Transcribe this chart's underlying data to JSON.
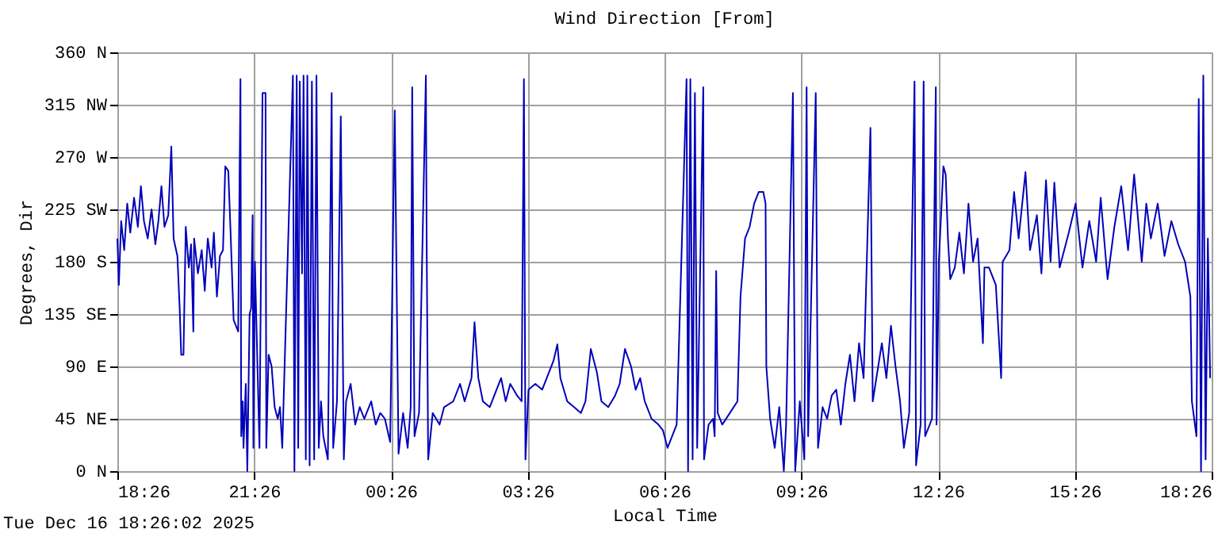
{
  "chart_data": {
    "type": "line",
    "title": "Wind Direction [From]",
    "xlabel": "Local Time",
    "ylabel": "Degrees, Dir",
    "annotations": [
      "Tue Dec 16 18:26:02 2025"
    ],
    "x": [
      "2025-12-15T18:26",
      "2025-12-15T18:28",
      "2025-12-15T18:31",
      "2025-12-15T18:35",
      "2025-12-15T18:39",
      "2025-12-15T18:43",
      "2025-12-15T18:48",
      "2025-12-15T18:53",
      "2025-12-15T18:57",
      "2025-12-15T19:01",
      "2025-12-15T19:06",
      "2025-12-15T19:11",
      "2025-12-15T19:16",
      "2025-12-15T19:20",
      "2025-12-15T19:24",
      "2025-12-15T19:28",
      "2025-12-15T19:33",
      "2025-12-15T19:37",
      "2025-12-15T19:40",
      "2025-12-15T19:45",
      "2025-12-15T19:48",
      "2025-12-15T19:50",
      "2025-12-15T19:53",
      "2025-12-15T19:56",
      "2025-12-15T20:00",
      "2025-12-15T20:03",
      "2025-12-15T20:06",
      "2025-12-15T20:07",
      "2025-12-15T20:12",
      "2025-12-15T20:17",
      "2025-12-15T20:21",
      "2025-12-15T20:25",
      "2025-12-15T20:30",
      "2025-12-15T20:33",
      "2025-12-15T20:37",
      "2025-12-15T20:41",
      "2025-12-15T20:45",
      "2025-12-15T20:48",
      "2025-12-15T20:52",
      "2025-12-15T20:55",
      "2025-12-15T20:59",
      "2025-12-15T21:05",
      "2025-12-15T21:08",
      "2025-12-15T21:09",
      "2025-12-15T21:11",
      "2025-12-15T21:12",
      "2025-12-15T21:15",
      "2025-12-15T21:17",
      "2025-12-15T21:20",
      "2025-12-15T21:22",
      "2025-12-15T21:24",
      "2025-12-15T21:25",
      "2025-12-15T21:27",
      "2025-12-15T21:33",
      "2025-12-15T21:37",
      "2025-12-15T21:41",
      "2025-12-15T21:42",
      "2025-12-15T21:45",
      "2025-12-15T21:49",
      "2025-12-15T21:53",
      "2025-12-15T21:57",
      "2025-12-15T22:00",
      "2025-12-15T22:03",
      "2025-12-15T22:17",
      "2025-12-15T22:19",
      "2025-12-15T22:22",
      "2025-12-15T22:24",
      "2025-12-15T22:26",
      "2025-12-15T22:29",
      "2025-12-15T22:31",
      "2025-12-15T22:34",
      "2025-12-15T22:36",
      "2025-12-15T22:39",
      "2025-12-15T22:42",
      "2025-12-15T22:45",
      "2025-12-15T22:48",
      "2025-12-15T22:51",
      "2025-12-15T22:54",
      "2025-12-15T22:57",
      "2025-12-15T23:03",
      "2025-12-15T23:08",
      "2025-12-15T23:10",
      "2025-12-15T23:15",
      "2025-12-15T23:20",
      "2025-12-15T23:24",
      "2025-12-15T23:27",
      "2025-12-15T23:33",
      "2025-12-15T23:39",
      "2025-12-15T23:45",
      "2025-12-15T23:51",
      "2025-12-16T00:00",
      "2025-12-16T00:06",
      "2025-12-16T00:12",
      "2025-12-16T00:18",
      "2025-12-16T00:25",
      "2025-12-16T00:31",
      "2025-12-16T00:33",
      "2025-12-16T00:36",
      "2025-12-16T00:42",
      "2025-12-16T00:48",
      "2025-12-16T00:52",
      "2025-12-16T00:54",
      "2025-12-16T00:57",
      "2025-12-16T01:03",
      "2025-12-16T01:12",
      "2025-12-16T01:13",
      "2025-12-16T01:15",
      "2025-12-16T01:21",
      "2025-12-16T01:30",
      "2025-12-16T01:36",
      "2025-12-16T01:48",
      "2025-12-16T01:57",
      "2025-12-16T02:03",
      "2025-12-16T02:12",
      "2025-12-16T02:16",
      "2025-12-16T02:21",
      "2025-12-16T02:27",
      "2025-12-16T02:36",
      "2025-12-16T02:42",
      "2025-12-16T02:51",
      "2025-12-16T02:57",
      "2025-12-16T03:03",
      "2025-12-16T03:12",
      "2025-12-16T03:18",
      "2025-12-16T03:21",
      "2025-12-16T03:23",
      "2025-12-16T03:27",
      "2025-12-16T03:36",
      "2025-12-16T03:45",
      "2025-12-16T03:54",
      "2025-12-16T04:00",
      "2025-12-16T04:05",
      "2025-12-16T04:09",
      "2025-12-16T04:18",
      "2025-12-16T04:27",
      "2025-12-16T04:36",
      "2025-12-16T04:42",
      "2025-12-16T04:49",
      "2025-12-16T04:57",
      "2025-12-16T05:03",
      "2025-12-16T05:12",
      "2025-12-16T05:21",
      "2025-12-16T05:27",
      "2025-12-16T05:34",
      "2025-12-16T05:42",
      "2025-12-16T05:48",
      "2025-12-16T05:54",
      "2025-12-16T06:00",
      "2025-12-16T06:09",
      "2025-12-16T06:18",
      "2025-12-16T06:24",
      "2025-12-16T06:30",
      "2025-12-16T06:42",
      "2025-12-16T06:55",
      "2025-12-16T06:57",
      "2025-12-16T07:00",
      "2025-12-16T07:03",
      "2025-12-16T07:06",
      "2025-12-16T07:09",
      "2025-12-16T07:17",
      "2025-12-16T07:18",
      "2025-12-16T07:24",
      "2025-12-16T07:30",
      "2025-12-16T07:32",
      "2025-12-16T07:34",
      "2025-12-16T07:36",
      "2025-12-16T07:42",
      "2025-12-16T08:02",
      "2025-12-16T08:06",
      "2025-12-16T08:12",
      "2025-12-16T08:18",
      "2025-12-16T08:24",
      "2025-12-16T08:30",
      "2025-12-16T08:36",
      "2025-12-16T08:39",
      "2025-12-16T08:40",
      "2025-12-16T08:45",
      "2025-12-16T08:51",
      "2025-12-16T08:57",
      "2025-12-16T09:03",
      "2025-12-16T09:06",
      "2025-12-16T09:15",
      "2025-12-16T09:18",
      "2025-12-16T09:24",
      "2025-12-16T09:30",
      "2025-12-16T09:33",
      "2025-12-16T09:35",
      "2025-12-16T09:45",
      "2025-12-16T09:48",
      "2025-12-16T09:54",
      "2025-12-16T10:00",
      "2025-12-16T10:06",
      "2025-12-16T10:12",
      "2025-12-16T10:18",
      "2025-12-16T10:24",
      "2025-12-16T10:30",
      "2025-12-16T10:36",
      "2025-12-16T10:42",
      "2025-12-16T10:48",
      "2025-12-16T10:57",
      "2025-12-16T11:00",
      "2025-12-16T11:06",
      "2025-12-16T11:12",
      "2025-12-16T11:18",
      "2025-12-16T11:24",
      "2025-12-16T11:30",
      "2025-12-16T11:36",
      "2025-12-16T11:41",
      "2025-12-16T11:48",
      "2025-12-16T11:55",
      "2025-12-16T11:57",
      "2025-12-16T12:03",
      "2025-12-16T12:07",
      "2025-12-16T12:09",
      "2025-12-16T12:18",
      "2025-12-16T12:23",
      "2025-12-16T12:24",
      "2025-12-16T12:27",
      "2025-12-16T12:33",
      "2025-12-16T12:36",
      "2025-12-16T12:39",
      "2025-12-16T12:42",
      "2025-12-16T12:48",
      "2025-12-16T12:54",
      "2025-12-16T13:00",
      "2025-12-16T13:06",
      "2025-12-16T13:12",
      "2025-12-16T13:18",
      "2025-12-16T13:25",
      "2025-12-16T13:27",
      "2025-12-16T13:33",
      "2025-12-16T13:42",
      "2025-12-16T13:49",
      "2025-12-16T13:51",
      "2025-12-16T14:00",
      "2025-12-16T14:06",
      "2025-12-16T14:12",
      "2025-12-16T14:21",
      "2025-12-16T14:27",
      "2025-12-16T14:36",
      "2025-12-16T14:42",
      "2025-12-16T14:48",
      "2025-12-16T14:54",
      "2025-12-16T14:59",
      "2025-12-16T15:06",
      "2025-12-16T15:18",
      "2025-12-16T15:27",
      "2025-12-16T15:36",
      "2025-12-16T15:45",
      "2025-12-16T15:54",
      "2025-12-16T16:00",
      "2025-12-16T16:09",
      "2025-12-16T16:18",
      "2025-12-16T16:27",
      "2025-12-16T16:36",
      "2025-12-16T16:44",
      "2025-12-16T16:54",
      "2025-12-16T17:00",
      "2025-12-16T17:06",
      "2025-12-16T17:15",
      "2025-12-16T17:24",
      "2025-12-16T17:33",
      "2025-12-16T17:42",
      "2025-12-16T17:51",
      "2025-12-16T17:58",
      "2025-12-16T18:00",
      "2025-12-16T18:03",
      "2025-12-16T18:06",
      "2025-12-16T18:09",
      "2025-12-16T18:12",
      "2025-12-16T18:15",
      "2025-12-16T18:18",
      "2025-12-16T18:21",
      "2025-12-16T18:24"
    ],
    "series": [
      {
        "color": "#0000bb",
        "values": [
          200,
          160,
          215,
          190,
          230,
          205,
          235,
          210,
          245,
          215,
          200,
          225,
          195,
          215,
          245,
          210,
          220,
          279,
          200,
          185,
          140,
          100,
          100,
          210,
          175,
          195,
          120,
          200,
          170,
          190,
          155,
          200,
          175,
          205,
          150,
          185,
          190,
          262,
          258,
          205,
          130,
          120,
          337,
          30,
          60,
          20,
          75,
          0,
          135,
          140,
          220,
          20,
          180,
          20,
          325,
          325,
          20,
          100,
          90,
          55,
          45,
          55,
          20,
          340,
          0,
          340,
          20,
          335,
          170,
          340,
          10,
          340,
          5,
          335,
          10,
          340,
          20,
          60,
          30,
          10,
          325,
          20,
          60,
          305,
          10,
          60,
          75,
          40,
          55,
          45,
          60,
          40,
          50,
          45,
          25,
          310,
          190,
          15,
          50,
          20,
          55,
          330,
          30,
          50,
          340,
          200,
          10,
          50,
          40,
          55,
          60,
          75,
          60,
          80,
          128,
          80,
          60,
          55,
          65,
          80,
          60,
          75,
          65,
          60,
          337,
          10,
          70,
          75,
          70,
          85,
          95,
          109,
          80,
          60,
          55,
          50,
          60,
          105,
          85,
          60,
          55,
          65,
          75,
          105,
          90,
          70,
          80,
          60,
          45,
          40,
          35,
          20,
          40,
          337,
          0,
          337,
          10,
          325,
          20,
          330,
          10,
          40,
          45,
          30,
          172,
          50,
          40,
          60,
          150,
          200,
          210,
          230,
          240,
          240,
          230,
          90,
          45,
          20,
          55,
          0,
          40,
          325,
          0,
          60,
          10,
          330,
          30,
          325,
          20,
          55,
          45,
          65,
          70,
          40,
          75,
          100,
          60,
          110,
          80,
          295,
          60,
          85,
          110,
          80,
          125,
          90,
          60,
          20,
          50,
          335,
          5,
          40,
          335,
          30,
          45,
          330,
          40,
          180,
          262,
          255,
          200,
          165,
          175,
          205,
          170,
          230,
          180,
          200,
          110,
          175,
          175,
          160,
          80,
          180,
          190,
          240,
          200,
          257,
          190,
          220,
          170,
          250,
          180,
          248,
          175,
          205,
          230,
          175,
          215,
          180,
          235,
          165,
          210,
          245,
          190,
          255,
          180,
          230,
          200,
          230,
          185,
          215,
          195,
          180,
          150,
          60,
          45,
          30,
          320,
          0,
          340,
          10,
          200,
          80
        ]
      }
    ],
    "xlim": [
      "2025-12-15T18:26",
      "2025-12-16T18:26"
    ],
    "xticks": [
      {
        "value": "2025-12-15T18:26",
        "label": "18:26"
      },
      {
        "value": "2025-12-15T21:26",
        "label": "21:26"
      },
      {
        "value": "2025-12-16T00:26",
        "label": "00:26"
      },
      {
        "value": "2025-12-16T03:26",
        "label": "03:26"
      },
      {
        "value": "2025-12-16T06:26",
        "label": "06:26"
      },
      {
        "value": "2025-12-16T09:26",
        "label": "09:26"
      },
      {
        "value": "2025-12-16T12:26",
        "label": "12:26"
      },
      {
        "value": "2025-12-16T15:26",
        "label": "15:26"
      },
      {
        "value": "2025-12-16T18:26",
        "label": "18:26"
      }
    ],
    "ylim": [
      0,
      360
    ],
    "yticks": [
      {
        "value": 0,
        "label": "0 N"
      },
      {
        "value": 45,
        "label": "45 NE"
      },
      {
        "value": 90,
        "label": "90 E"
      },
      {
        "value": 135,
        "label": "135 SE"
      },
      {
        "value": 180,
        "label": "180 S"
      },
      {
        "value": 225,
        "label": "225 SW"
      },
      {
        "value": 270,
        "label": "270 W"
      },
      {
        "value": 315,
        "label": "315 NW"
      },
      {
        "value": 360,
        "label": "360 N"
      }
    ],
    "grid": true
  }
}
